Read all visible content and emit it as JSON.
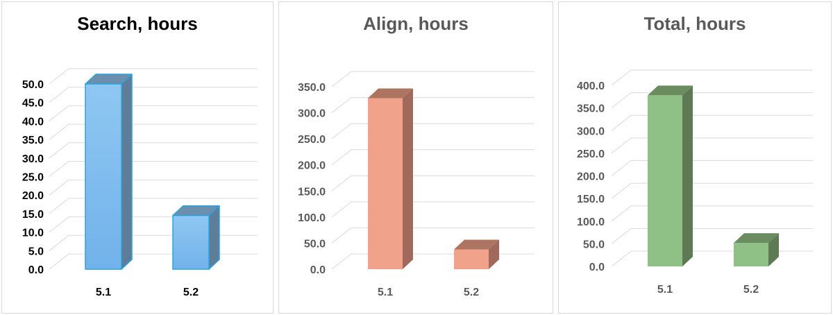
{
  "chart_data": [
    {
      "type": "bar",
      "title": "Search, hours",
      "categories": [
        "5.1",
        "5.2"
      ],
      "values": [
        50.0,
        14.5
      ],
      "ylim": [
        0,
        50
      ],
      "y_ticks": [
        "0.0",
        "5.0",
        "10.0",
        "15.0",
        "20.0",
        "25.0",
        "30.0",
        "35.0",
        "40.0",
        "45.0",
        "50.0"
      ],
      "grid": true,
      "style": "3d-column",
      "colors": {
        "front": "#8ec7f2",
        "front_bottom": "#72b2ea",
        "side": "#5e7d98",
        "top": "#6d8fae",
        "edge": "#2aa3dc",
        "title": "#000000",
        "tick": "#000000"
      }
    },
    {
      "type": "bar",
      "title": "Align, hours",
      "categories": [
        "5.1",
        "5.2"
      ],
      "values": [
        328.0,
        38.0
      ],
      "ylim": [
        0,
        350
      ],
      "y_ticks": [
        "0.0",
        "50.0",
        "100.0",
        "150.0",
        "200.0",
        "250.0",
        "300.0",
        "350.0"
      ],
      "grid": true,
      "style": "3d-column",
      "colors": {
        "front": "#f0a28a",
        "front_bottom": "#f0a28a",
        "side": "#a0695b",
        "top": "#ad7462",
        "edge": "none",
        "title": "#595959",
        "tick": "#595959"
      }
    },
    {
      "type": "bar",
      "title": "Total, hours",
      "categories": [
        "5.1",
        "5.2"
      ],
      "values": [
        378.0,
        52.0
      ],
      "ylim": [
        0,
        400
      ],
      "y_ticks": [
        "0.0",
        "50.0",
        "100.0",
        "150.0",
        "200.0",
        "250.0",
        "300.0",
        "350.0",
        "400.0"
      ],
      "grid": true,
      "style": "3d-column",
      "colors": {
        "front": "#8fc085",
        "front_bottom": "#8fc085",
        "side": "#5e7a55",
        "top": "#6b8c60",
        "edge": "none",
        "title": "#595959",
        "tick": "#595959"
      }
    }
  ]
}
